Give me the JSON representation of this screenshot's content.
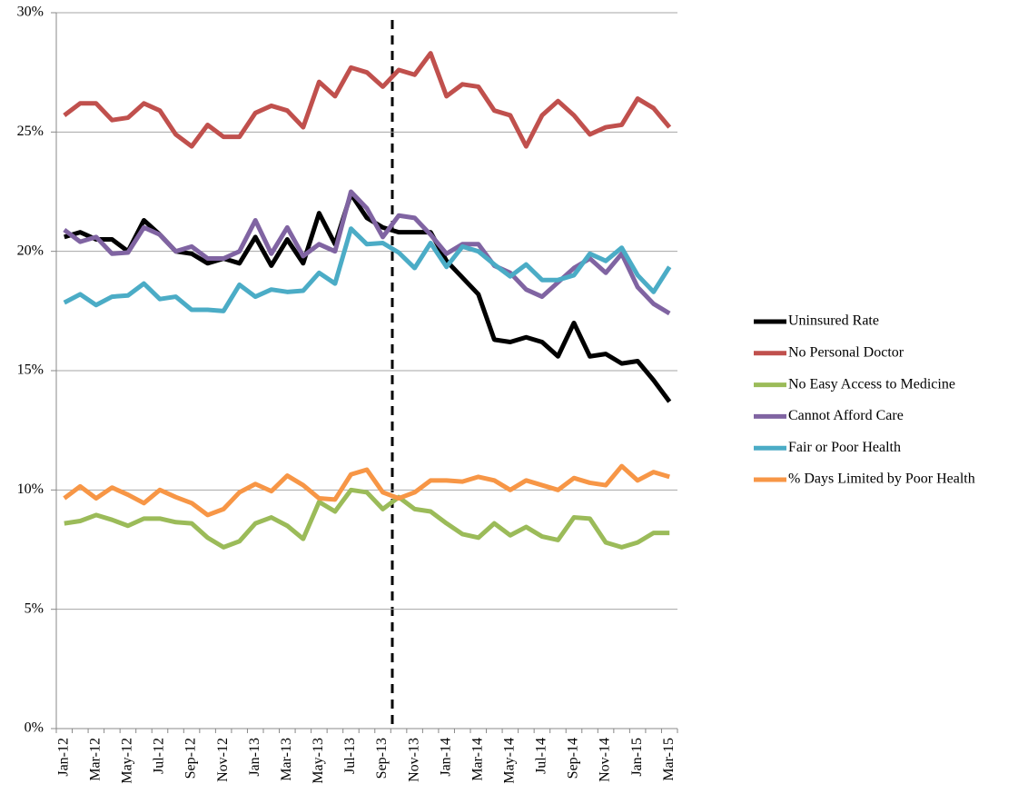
{
  "chart_data": {
    "type": "line",
    "categories": [
      "Jan-12",
      null,
      "Mar-12",
      null,
      "May-12",
      null,
      "Jul-12",
      null,
      "Sep-12",
      null,
      "Nov-12",
      null,
      "Jan-13",
      null,
      "Mar-13",
      null,
      "May-13",
      null,
      "Jul-13",
      null,
      "Sep-13",
      null,
      "Nov-13",
      null,
      "Jan-14",
      null,
      "Mar-14",
      null,
      "May-14",
      null,
      "Jul-14",
      null,
      "Sep-14",
      null,
      "Nov-14",
      null,
      "Jan-15",
      null,
      "Mar-15"
    ],
    "series": [
      {
        "name": "Uninsured Rate",
        "color": "#000000",
        "values": [
          20.6,
          20.8,
          20.5,
          20.5,
          20.0,
          21.3,
          20.7,
          20.0,
          19.9,
          19.5,
          19.7,
          19.5,
          20.6,
          19.4,
          20.5,
          19.5,
          21.6,
          20.3,
          22.4,
          21.4,
          21.0,
          20.8,
          20.8,
          20.8,
          19.6,
          18.9,
          18.2,
          16.3,
          16.2,
          16.4,
          16.2,
          15.6,
          17.0,
          15.6,
          15.7,
          15.3,
          15.4,
          14.6,
          13.7
        ]
      },
      {
        "name": "No Personal Doctor",
        "color": "#c0504d",
        "values": [
          25.7,
          26.2,
          26.2,
          25.5,
          25.6,
          26.2,
          25.9,
          24.9,
          24.4,
          25.3,
          24.8,
          24.8,
          25.8,
          26.1,
          25.9,
          25.2,
          27.1,
          26.5,
          27.7,
          27.5,
          26.9,
          27.6,
          27.4,
          28.3,
          26.5,
          27.0,
          26.9,
          25.9,
          25.7,
          24.4,
          25.7,
          26.3,
          25.7,
          24.9,
          25.2,
          25.3,
          26.4,
          26.0,
          25.2
        ]
      },
      {
        "name": "No Easy Access to Medicine",
        "color": "#9bbb59",
        "values": [
          8.6,
          8.7,
          8.95,
          8.75,
          8.5,
          8.8,
          8.8,
          8.65,
          8.6,
          8.0,
          7.6,
          7.85,
          8.6,
          8.85,
          8.5,
          7.95,
          9.5,
          9.1,
          10.0,
          9.9,
          9.2,
          9.7,
          9.2,
          9.1,
          8.6,
          8.15,
          8.0,
          8.6,
          8.1,
          8.45,
          8.05,
          7.9,
          8.85,
          8.8,
          7.8,
          7.6,
          7.8,
          8.2,
          8.2
        ]
      },
      {
        "name": "Cannot Afford Care",
        "color": "#8064a2",
        "values": [
          20.9,
          20.4,
          20.6,
          19.9,
          19.95,
          21.0,
          20.7,
          20.0,
          20.2,
          19.7,
          19.7,
          20.0,
          21.3,
          19.9,
          21.0,
          19.8,
          20.3,
          20.0,
          22.5,
          21.8,
          20.6,
          21.5,
          21.4,
          20.7,
          19.9,
          20.3,
          20.3,
          19.4,
          19.1,
          18.4,
          18.1,
          18.7,
          19.3,
          19.7,
          19.1,
          19.9,
          18.5,
          17.8,
          17.4
        ]
      },
      {
        "name": "Fair or Poor Health",
        "color": "#4bacc6",
        "values": [
          17.85,
          18.2,
          17.75,
          18.1,
          18.15,
          18.65,
          18.0,
          18.1,
          17.55,
          17.55,
          17.5,
          18.6,
          18.1,
          18.4,
          18.3,
          18.35,
          19.1,
          18.65,
          20.95,
          20.3,
          20.35,
          19.95,
          19.3,
          20.35,
          19.35,
          20.2,
          20.0,
          19.45,
          18.95,
          19.45,
          18.8,
          18.8,
          19.0,
          19.9,
          19.6,
          20.15,
          19.0,
          18.3,
          19.35
        ]
      },
      {
        "name": "% Days Limited by Poor Health",
        "color": "#f79646",
        "values": [
          9.65,
          10.15,
          9.65,
          10.1,
          9.8,
          9.45,
          10.0,
          9.7,
          9.45,
          8.95,
          9.2,
          9.9,
          10.25,
          9.95,
          10.6,
          10.2,
          9.65,
          9.6,
          10.65,
          10.85,
          9.9,
          9.65,
          9.9,
          10.4,
          10.4,
          10.35,
          10.55,
          10.4,
          10.0,
          10.4,
          10.2,
          10.0,
          10.5,
          10.3,
          10.2,
          11.0,
          10.4,
          10.75,
          10.55
        ]
      }
    ],
    "ylim": [
      0,
      30
    ],
    "yticks": [
      {
        "value": 0,
        "label": "0%"
      },
      {
        "value": 5,
        "label": "5%"
      },
      {
        "value": 10,
        "label": "10%"
      },
      {
        "value": 15,
        "label": "15%"
      },
      {
        "value": 20,
        "label": "20%"
      },
      {
        "value": 25,
        "label": "25%"
      },
      {
        "value": 30,
        "label": "30%"
      }
    ],
    "grid": true,
    "legend": "right"
  }
}
